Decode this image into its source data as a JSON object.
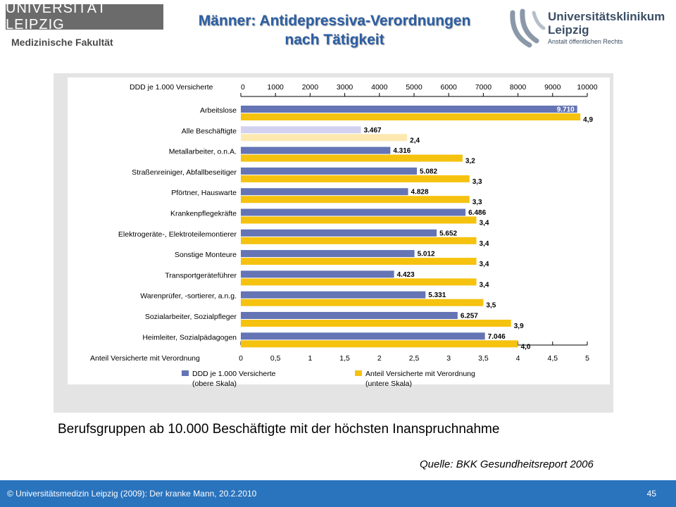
{
  "header": {
    "logo_left": "UNIVERSITÄT LEIPZIG",
    "logo_left_sub": "Medizinische Fakultät",
    "title_line1": "Männer: Antidepressiva-Verordnungen",
    "title_line2": "nach Tätigkeit",
    "logo_right_line1": "Universitätsklinikum",
    "logo_right_line2": "Leipzig",
    "logo_right_sub": "Anstalt öffentlichen Rechts"
  },
  "colors": {
    "ddd_bar": "#6474b4",
    "ddd_bar_highlight": "#d2d2f0",
    "share_bar": "#f5c20f",
    "share_bar_highlight": "#fde9b0",
    "footer": "#2a73bd",
    "title": "#2b5fa5"
  },
  "chart_data": {
    "type": "bar",
    "orientation": "horizontal",
    "top_axis_label": "DDD je 1.000 Versicherte",
    "top_axis_ticks": [
      "0",
      "1000",
      "2000",
      "3000",
      "4000",
      "5000",
      "6000",
      "7000",
      "8000",
      "9000",
      "10000"
    ],
    "top_axis_range": [
      0,
      10000
    ],
    "bottom_axis_label": "Anteil Versicherte mit Verordnung",
    "bottom_axis_ticks": [
      "0",
      "0,5",
      "1",
      "1,5",
      "2",
      "2,5",
      "3",
      "3,5",
      "4",
      "4,5",
      "5"
    ],
    "bottom_axis_range": [
      0,
      5
    ],
    "categories": [
      "Arbeitslose",
      "Alle Beschäftigte",
      "Metallarbeiter, o.n.A.",
      "Straßenreiniger, Abfallbeseitiger",
      "Pförtner, Hauswarte",
      "Krankenpflegekräfte",
      "Elektrogeräte-, Elektroteilemontierer",
      "Sonstige Monteure",
      "Transportgeräteführer",
      "Warenprüfer, -sortierer, a.n.g.",
      "Sozialarbeiter, Sozialpfleger",
      "Heimleiter, Sozialpädagogen"
    ],
    "series": [
      {
        "name": "DDD je 1.000 Versicherte",
        "name_sub": "(obere Skala)",
        "values": [
          9710,
          3467,
          4316,
          5082,
          4828,
          6486,
          5652,
          5012,
          4423,
          5331,
          6257,
          7046
        ],
        "labels": [
          "9.710",
          "3.467",
          "4.316",
          "5.082",
          "4.828",
          "6.486",
          "5.652",
          "5.012",
          "4.423",
          "5.331",
          "6.257",
          "7.046"
        ]
      },
      {
        "name": "Anteil Versicherte mit Verordnung",
        "name_sub": "(untere Skala)",
        "values": [
          4.9,
          2.4,
          3.2,
          3.3,
          3.3,
          3.4,
          3.4,
          3.4,
          3.4,
          3.5,
          3.9,
          4.0
        ],
        "labels": [
          "4,9",
          "2,4",
          "3,2",
          "3,3",
          "3,3",
          "3,4",
          "3,4",
          "3,4",
          "3,4",
          "3,5",
          "3,9",
          "4,0"
        ]
      }
    ],
    "highlight_category_index": 1,
    "legend_position": "bottom"
  },
  "caption": "Berufsgruppen ab 10.000 Beschäftigte mit der höchsten Inanspruchnahme",
  "source": "Quelle: BKK Gesundheitsreport 2006",
  "footer": {
    "text": "© Universitätsmedizin Leipzig (2009): Der kranke Mann, 20.2.2010",
    "page": "45"
  }
}
